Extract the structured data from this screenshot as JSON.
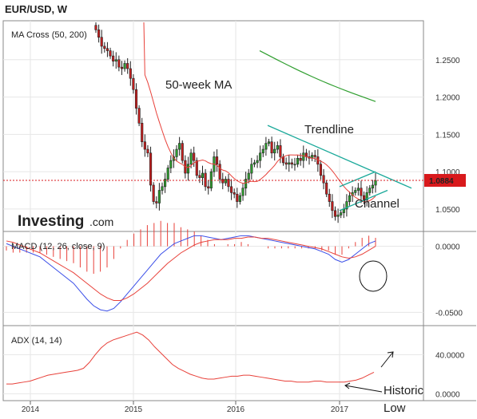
{
  "header": {
    "title": "EUR/USD, W"
  },
  "colors": {
    "bull": "#2e9e2e",
    "bear": "#c81e1e",
    "ma50": "#e8413a",
    "ma200": "#2e9e2e",
    "macd_line": "#3a4ee8",
    "signal_line": "#e8413a",
    "hist": "#e8413a",
    "adx": "#e8413a",
    "trend": "#1aa99a",
    "price_tag": "#d8191c",
    "grid": "#e6e6e6"
  },
  "annotations": {
    "ma_label": "50-week MA",
    "trendline_label": "Trendline",
    "channel_label": "Channel",
    "historic_line1": "Historic",
    "historic_line2": "Low"
  },
  "logo": {
    "brand": "Investing",
    "suffix": ".com"
  },
  "chart_data": [
    {
      "type": "candlestick",
      "title": "MA Cross (50, 200)",
      "x_ticks": [
        "2014",
        "2015",
        "2016",
        "2017"
      ],
      "y_ticks": [
        "1.2500",
        "1.2000",
        "1.1500",
        "1.1000",
        "1.0500"
      ],
      "ylim": [
        1.02,
        1.3
      ],
      "last_price": "1.0884",
      "close": [
        1.29,
        1.28,
        1.268,
        1.265,
        1.262,
        1.255,
        1.248,
        1.25,
        1.24,
        1.238,
        1.245,
        1.238,
        1.225,
        1.21,
        1.185,
        1.165,
        1.14,
        1.13,
        1.125,
        1.082,
        1.06,
        1.058,
        1.075,
        1.08,
        1.09,
        1.105,
        1.115,
        1.12,
        1.13,
        1.138,
        1.115,
        1.098,
        1.11,
        1.125,
        1.115,
        1.095,
        1.092,
        1.098,
        1.08,
        1.078,
        1.1,
        1.12,
        1.11,
        1.09,
        1.085,
        1.09,
        1.08,
        1.072,
        1.07,
        1.06,
        1.068,
        1.078,
        1.09,
        1.098,
        1.11,
        1.112,
        1.115,
        1.125,
        1.13,
        1.138,
        1.14,
        1.125,
        1.13,
        1.135,
        1.12,
        1.112,
        1.11,
        1.112,
        1.11,
        1.11,
        1.118,
        1.115,
        1.125,
        1.12,
        1.118,
        1.122,
        1.12,
        1.11,
        1.095,
        1.085,
        1.07,
        1.06,
        1.048,
        1.04,
        1.042,
        1.045,
        1.05,
        1.06,
        1.068,
        1.072,
        1.075,
        1.078,
        1.068,
        1.062,
        1.072,
        1.078,
        1.082,
        1.088
      ]
    },
    {
      "type": "line",
      "title": "MACD (12, 26, close, 9)",
      "y_ticks": [
        "0.0000",
        "-0.0500"
      ],
      "series_macd": [
        0.002,
        0.0,
        -0.002,
        -0.004,
        -0.006,
        -0.008,
        -0.012,
        -0.016,
        -0.02,
        -0.024,
        -0.028,
        -0.034,
        -0.04,
        -0.045,
        -0.048,
        -0.049,
        -0.047,
        -0.042,
        -0.036,
        -0.03,
        -0.024,
        -0.018,
        -0.012,
        -0.006,
        -0.002,
        0.002,
        0.004,
        0.006,
        0.008,
        0.008,
        0.007,
        0.006,
        0.005,
        0.006,
        0.007,
        0.008,
        0.008,
        0.007,
        0.006,
        0.005,
        0.004,
        0.003,
        0.002,
        0.001,
        0.0,
        -0.001,
        -0.002,
        -0.004,
        -0.006,
        -0.01,
        -0.012,
        -0.01,
        -0.006,
        -0.002,
        0.002,
        0.004
      ],
      "series_signal": [
        0.004,
        0.003,
        0.001,
        -0.001,
        -0.003,
        -0.005,
        -0.008,
        -0.011,
        -0.014,
        -0.017,
        -0.02,
        -0.024,
        -0.028,
        -0.032,
        -0.036,
        -0.039,
        -0.041,
        -0.041,
        -0.039,
        -0.036,
        -0.032,
        -0.028,
        -0.023,
        -0.018,
        -0.013,
        -0.009,
        -0.005,
        -0.002,
        0.001,
        0.003,
        0.004,
        0.005,
        0.005,
        0.005,
        0.006,
        0.006,
        0.007,
        0.007,
        0.006,
        0.006,
        0.005,
        0.004,
        0.003,
        0.002,
        0.001,
        0.0,
        -0.001,
        -0.002,
        -0.004,
        -0.006,
        -0.008,
        -0.009,
        -0.008,
        -0.006,
        -0.003,
        0.0
      ]
    },
    {
      "type": "line",
      "title": "ADX (14, 14)",
      "y_ticks": [
        "40.0000",
        "0.0000"
      ],
      "series_adx": [
        10,
        10,
        11,
        12,
        13,
        15,
        17,
        19,
        20,
        21,
        22,
        23,
        24,
        26,
        32,
        40,
        47,
        52,
        55,
        57,
        59,
        61,
        63,
        60,
        55,
        48,
        42,
        36,
        30,
        26,
        23,
        20,
        18,
        16,
        15,
        15,
        16,
        17,
        18,
        18,
        19,
        19,
        18,
        17,
        16,
        15,
        14,
        13,
        13,
        12,
        12,
        12,
        13,
        13,
        12,
        12,
        12,
        12,
        13,
        14,
        16,
        19,
        22
      ]
    }
  ]
}
